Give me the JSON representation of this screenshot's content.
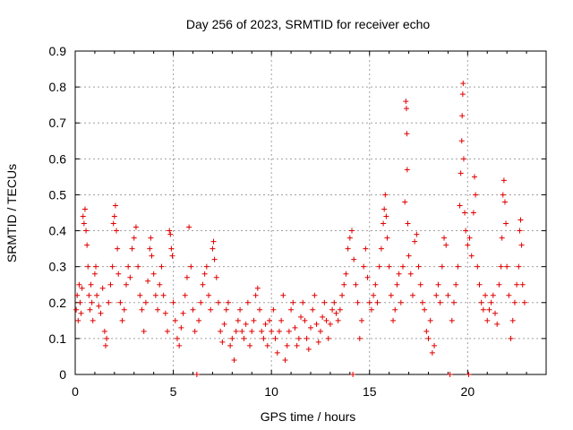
{
  "chart_data": {
    "type": "scatter",
    "title": "Day 256 of 2023, SRMTID for receiver echo",
    "xlabel": "GPS time / hours",
    "ylabel": "SRMTID / TECUs",
    "xlim": [
      0,
      24
    ],
    "ylim": [
      0,
      0.9
    ],
    "x_ticks": [
      0,
      5,
      10,
      15,
      20
    ],
    "y_ticks": [
      0,
      0.1,
      0.2,
      0.3,
      0.4,
      0.5,
      0.6,
      0.7,
      0.8,
      0.9
    ],
    "x_tick_labels": [
      "0",
      "5",
      "10",
      "15",
      "20"
    ],
    "y_tick_labels": [
      "0",
      "0.1",
      "0.2",
      "0.3",
      "0.4",
      "0.5",
      "0.6",
      "0.7",
      "0.8",
      "0.9"
    ],
    "grid": true,
    "marker": "+",
    "color": "#e00000",
    "series": [
      {
        "name": "echo",
        "points": [
          [
            0.05,
            0.18
          ],
          [
            0.1,
            0.22
          ],
          [
            0.15,
            0.15
          ],
          [
            0.2,
            0.25
          ],
          [
            0.25,
            0.2
          ],
          [
            0.3,
            0.17
          ],
          [
            0.35,
            0.24
          ],
          [
            0.4,
            0.44
          ],
          [
            0.45,
            0.42
          ],
          [
            0.5,
            0.46
          ],
          [
            0.55,
            0.4
          ],
          [
            0.6,
            0.36
          ],
          [
            0.65,
            0.3
          ],
          [
            0.7,
            0.22
          ],
          [
            0.75,
            0.18
          ],
          [
            0.8,
            0.25
          ],
          [
            0.85,
            0.2
          ],
          [
            0.9,
            0.15
          ],
          [
            1.0,
            0.28
          ],
          [
            1.05,
            0.3
          ],
          [
            1.1,
            0.22
          ],
          [
            1.2,
            0.19
          ],
          [
            1.3,
            0.17
          ],
          [
            1.4,
            0.24
          ],
          [
            1.5,
            0.12
          ],
          [
            1.55,
            0.08
          ],
          [
            1.6,
            0.1
          ],
          [
            1.7,
            0.2
          ],
          [
            1.8,
            0.25
          ],
          [
            1.9,
            0.3
          ],
          [
            1.95,
            0.42
          ],
          [
            2.0,
            0.44
          ],
          [
            2.05,
            0.47
          ],
          [
            2.1,
            0.4
          ],
          [
            2.15,
            0.35
          ],
          [
            2.2,
            0.28
          ],
          [
            2.3,
            0.2
          ],
          [
            2.4,
            0.15
          ],
          [
            2.5,
            0.18
          ],
          [
            2.6,
            0.25
          ],
          [
            2.7,
            0.3
          ],
          [
            2.8,
            0.27
          ],
          [
            2.9,
            0.35
          ],
          [
            3.0,
            0.38
          ],
          [
            3.1,
            0.41
          ],
          [
            3.2,
            0.3
          ],
          [
            3.3,
            0.22
          ],
          [
            3.4,
            0.18
          ],
          [
            3.5,
            0.12
          ],
          [
            3.6,
            0.2
          ],
          [
            3.7,
            0.26
          ],
          [
            3.8,
            0.35
          ],
          [
            3.85,
            0.38
          ],
          [
            3.9,
            0.33
          ],
          [
            4.0,
            0.28
          ],
          [
            4.1,
            0.22
          ],
          [
            4.2,
            0.18
          ],
          [
            4.3,
            0.25
          ],
          [
            4.4,
            0.3
          ],
          [
            4.5,
            0.22
          ],
          [
            4.6,
            0.17
          ],
          [
            4.7,
            0.12
          ],
          [
            4.8,
            0.4
          ],
          [
            4.85,
            0.39
          ],
          [
            4.9,
            0.35
          ],
          [
            4.95,
            0.33
          ],
          [
            5.0,
            0.2
          ],
          [
            5.1,
            0.15
          ],
          [
            5.2,
            0.1
          ],
          [
            5.3,
            0.08
          ],
          [
            5.4,
            0.13
          ],
          [
            5.5,
            0.17
          ],
          [
            5.6,
            0.22
          ],
          [
            5.7,
            0.27
          ],
          [
            5.8,
            0.41
          ],
          [
            5.9,
            0.3
          ],
          [
            6.0,
            0.18
          ],
          [
            6.1,
            0.12
          ],
          [
            6.2,
            0.0
          ],
          [
            6.3,
            0.15
          ],
          [
            6.4,
            0.2
          ],
          [
            6.5,
            0.25
          ],
          [
            6.6,
            0.28
          ],
          [
            6.7,
            0.3
          ],
          [
            6.8,
            0.22
          ],
          [
            6.9,
            0.18
          ],
          [
            7.0,
            0.35
          ],
          [
            7.05,
            0.37
          ],
          [
            7.1,
            0.32
          ],
          [
            7.2,
            0.27
          ],
          [
            7.3,
            0.2
          ],
          [
            7.4,
            0.12
          ],
          [
            7.5,
            0.09
          ],
          [
            7.6,
            0.14
          ],
          [
            7.7,
            0.18
          ],
          [
            7.8,
            0.2
          ],
          [
            7.9,
            0.08
          ],
          [
            8.0,
            0.1
          ],
          [
            8.1,
            0.04
          ],
          [
            8.2,
            0.12
          ],
          [
            8.3,
            0.15
          ],
          [
            8.4,
            0.18
          ],
          [
            8.5,
            0.12
          ],
          [
            8.6,
            0.1
          ],
          [
            8.7,
            0.14
          ],
          [
            8.8,
            0.2
          ],
          [
            8.9,
            0.08
          ],
          [
            9.0,
            0.12
          ],
          [
            9.1,
            0.15
          ],
          [
            9.2,
            0.22
          ],
          [
            9.3,
            0.24
          ],
          [
            9.4,
            0.18
          ],
          [
            9.5,
            0.12
          ],
          [
            9.6,
            0.1
          ],
          [
            9.7,
            0.14
          ],
          [
            9.8,
            0.08
          ],
          [
            9.9,
            0.15
          ],
          [
            10.0,
            0.12
          ],
          [
            10.1,
            0.18
          ],
          [
            10.2,
            0.1
          ],
          [
            10.3,
            0.06
          ],
          [
            10.4,
            0.12
          ],
          [
            10.5,
            0.15
          ],
          [
            10.6,
            0.22
          ],
          [
            10.7,
            0.04
          ],
          [
            10.8,
            0.08
          ],
          [
            10.9,
            0.12
          ],
          [
            11.0,
            0.18
          ],
          [
            11.1,
            0.2
          ],
          [
            11.2,
            0.13
          ],
          [
            11.3,
            0.08
          ],
          [
            11.4,
            0.1
          ],
          [
            11.5,
            0.16
          ],
          [
            11.6,
            0.2
          ],
          [
            11.7,
            0.15
          ],
          [
            11.8,
            0.1
          ],
          [
            11.9,
            0.07
          ],
          [
            12.0,
            0.13
          ],
          [
            12.1,
            0.18
          ],
          [
            12.2,
            0.22
          ],
          [
            12.3,
            0.14
          ],
          [
            12.4,
            0.09
          ],
          [
            12.5,
            0.12
          ],
          [
            12.6,
            0.16
          ],
          [
            12.7,
            0.2
          ],
          [
            12.8,
            0.15
          ],
          [
            12.9,
            0.1
          ],
          [
            13.0,
            0.14
          ],
          [
            13.1,
            0.18
          ],
          [
            13.2,
            0.2
          ],
          [
            13.3,
            0.17
          ],
          [
            13.4,
            0.15
          ],
          [
            13.5,
            0.18
          ],
          [
            13.6,
            0.22
          ],
          [
            13.7,
            0.25
          ],
          [
            13.8,
            0.28
          ],
          [
            13.9,
            0.35
          ],
          [
            14.0,
            0.38
          ],
          [
            14.1,
            0.4
          ],
          [
            14.15,
            0.0
          ],
          [
            14.2,
            0.32
          ],
          [
            14.3,
            0.25
          ],
          [
            14.4,
            0.2
          ],
          [
            14.5,
            0.1
          ],
          [
            14.6,
            0.15
          ],
          [
            14.7,
            0.3
          ],
          [
            14.8,
            0.35
          ],
          [
            14.9,
            0.27
          ],
          [
            15.0,
            0.2
          ],
          [
            15.1,
            0.18
          ],
          [
            15.2,
            0.22
          ],
          [
            15.3,
            0.25
          ],
          [
            15.4,
            0.2
          ],
          [
            15.5,
            0.3
          ],
          [
            15.6,
            0.35
          ],
          [
            15.7,
            0.42
          ],
          [
            15.75,
            0.46
          ],
          [
            15.8,
            0.5
          ],
          [
            15.85,
            0.44
          ],
          [
            15.9,
            0.38
          ],
          [
            16.0,
            0.3
          ],
          [
            16.1,
            0.22
          ],
          [
            16.2,
            0.15
          ],
          [
            16.3,
            0.18
          ],
          [
            16.4,
            0.25
          ],
          [
            16.5,
            0.28
          ],
          [
            16.6,
            0.2
          ],
          [
            16.7,
            0.3
          ],
          [
            16.8,
            0.48
          ],
          [
            16.85,
            0.76
          ],
          [
            16.88,
            0.74
          ],
          [
            16.9,
            0.67
          ],
          [
            16.92,
            0.57
          ],
          [
            16.95,
            0.42
          ],
          [
            17.0,
            0.33
          ],
          [
            17.1,
            0.28
          ],
          [
            17.2,
            0.22
          ],
          [
            17.3,
            0.37
          ],
          [
            17.4,
            0.39
          ],
          [
            17.5,
            0.3
          ],
          [
            17.6,
            0.25
          ],
          [
            17.7,
            0.2
          ],
          [
            17.8,
            0.18
          ],
          [
            17.9,
            0.12
          ],
          [
            18.0,
            0.1
          ],
          [
            18.1,
            0.15
          ],
          [
            18.2,
            0.06
          ],
          [
            18.3,
            0.08
          ],
          [
            18.4,
            0.22
          ],
          [
            18.5,
            0.25
          ],
          [
            18.6,
            0.2
          ],
          [
            18.7,
            0.3
          ],
          [
            18.8,
            0.38
          ],
          [
            18.9,
            0.36
          ],
          [
            19.0,
            0.22
          ],
          [
            19.1,
            0.0
          ],
          [
            19.2,
            0.15
          ],
          [
            19.3,
            0.2
          ],
          [
            19.4,
            0.25
          ],
          [
            19.5,
            0.3
          ],
          [
            19.6,
            0.47
          ],
          [
            19.65,
            0.56
          ],
          [
            19.7,
            0.65
          ],
          [
            19.72,
            0.72
          ],
          [
            19.75,
            0.78
          ],
          [
            19.77,
            0.81
          ],
          [
            19.8,
            0.6
          ],
          [
            19.85,
            0.45
          ],
          [
            19.9,
            0.4
          ],
          [
            20.0,
            0.36
          ],
          [
            20.05,
            0.0
          ],
          [
            20.1,
            0.38
          ],
          [
            20.2,
            0.33
          ],
          [
            20.3,
            0.45
          ],
          [
            20.35,
            0.55
          ],
          [
            20.4,
            0.5
          ],
          [
            20.5,
            0.3
          ],
          [
            20.6,
            0.25
          ],
          [
            20.7,
            0.2
          ],
          [
            20.8,
            0.18
          ],
          [
            20.9,
            0.22
          ],
          [
            21.0,
            0.15
          ],
          [
            21.1,
            0.18
          ],
          [
            21.2,
            0.2
          ],
          [
            21.3,
            0.22
          ],
          [
            21.4,
            0.17
          ],
          [
            21.5,
            0.14
          ],
          [
            21.6,
            0.25
          ],
          [
            21.7,
            0.3
          ],
          [
            21.75,
            0.38
          ],
          [
            21.8,
            0.5
          ],
          [
            21.85,
            0.54
          ],
          [
            21.9,
            0.48
          ],
          [
            21.95,
            0.42
          ],
          [
            22.0,
            0.3
          ],
          [
            22.1,
            0.22
          ],
          [
            22.2,
            0.1
          ],
          [
            22.3,
            0.15
          ],
          [
            22.4,
            0.2
          ],
          [
            22.5,
            0.25
          ],
          [
            22.6,
            0.3
          ],
          [
            22.65,
            0.4
          ],
          [
            22.7,
            0.43
          ],
          [
            22.75,
            0.36
          ],
          [
            22.8,
            0.25
          ],
          [
            22.9,
            0.2
          ]
        ]
      }
    ]
  }
}
